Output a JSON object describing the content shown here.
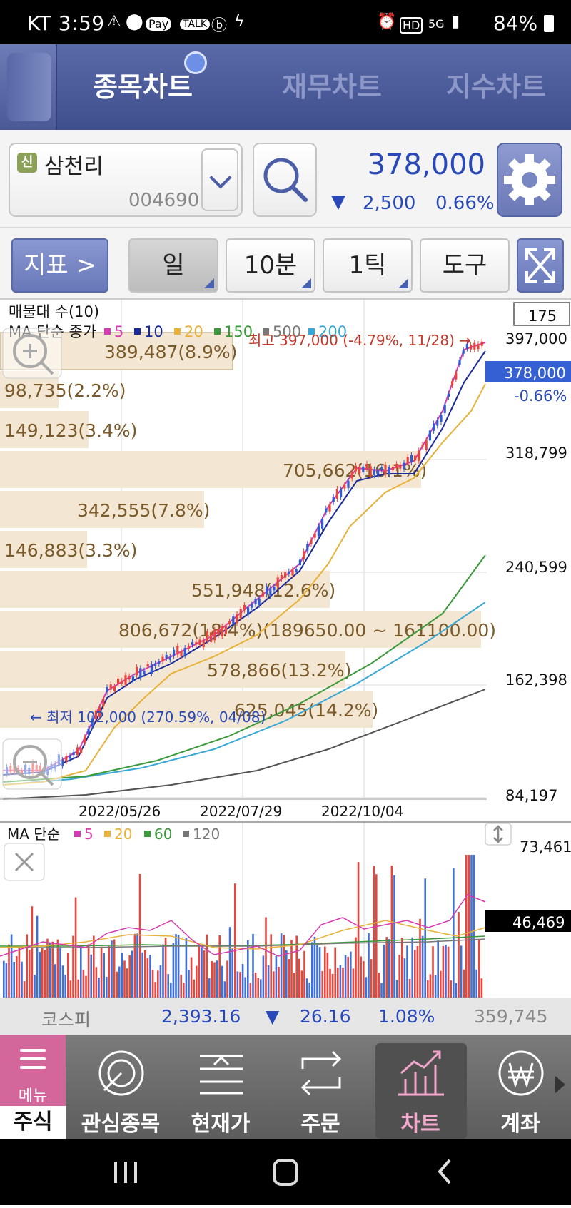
{
  "status_bar": {
    "carrier_time": "KT 3:59",
    "battery": "84%",
    "icons": [
      "warning-icon",
      "location-icon",
      "pay-icon",
      "talk-icon",
      "b-icon",
      "v-icon",
      "alarm-icon",
      "hd-icon",
      "5g-icon",
      "signal-icon",
      "battery-icon"
    ]
  },
  "top_tabs": [
    "종목차트",
    "재무차트",
    "지수차트"
  ],
  "stock": {
    "badge": "신",
    "name": "삼천리",
    "code": "004690",
    "price": "378,000",
    "change_arrow": "▼",
    "change": "2,500",
    "change_pct": "0.66%"
  },
  "toolbar": {
    "indicator": "지표 >",
    "period": "일",
    "minute": "10분",
    "tick": "1틱",
    "tools": "도구"
  },
  "chart": {
    "vol_profile_title": "매물대 수(10)",
    "ma_label": "MA 단순 종가",
    "ma_series": [
      {
        "name": "5",
        "color": "#d63cb0"
      },
      {
        "name": "10",
        "color": "#1a2a9a"
      },
      {
        "name": "20",
        "color": "#e8b23a"
      },
      {
        "name": "150",
        "color": "#3c9a3c"
      },
      {
        "name": "500",
        "color": "#777777"
      },
      {
        "name": "200",
        "color": "#3aa8d6"
      }
    ],
    "count_box": "175",
    "high_label": "최고 397,000 (-4.79%, 11/28) →",
    "low_label": "← 최저 102,000 (270.59%, 04/08)",
    "current_price_tag": "378,000",
    "current_change_tag": "-0.66%",
    "y_ticks": [
      "397,000",
      "318,799",
      "240,599",
      "162,398",
      "84,197"
    ],
    "x_ticks": [
      "2022/05/26",
      "2022/07/29",
      "2022/10/04"
    ],
    "volume_profile": [
      "389,487(8.9%)",
      "98,735(2.2%)",
      "149,123(3.4%)",
      "705,662(16.1%)",
      "342,555(7.8%)",
      "146,883(3.3%)",
      "551,948(12.6%)",
      "806,672(18.4%)(189650.00 ~ 161100.00)",
      "578,866(13.2%)",
      "625,045(14.2%)"
    ]
  },
  "volume_chart": {
    "ma_label": "MA 단순",
    "ma_series": [
      {
        "name": "5",
        "color": "#d63cb0"
      },
      {
        "name": "20",
        "color": "#e8b23a"
      },
      {
        "name": "60",
        "color": "#3c9a3c"
      },
      {
        "name": "120",
        "color": "#777777"
      }
    ],
    "y_top": "73,461",
    "y_current": "46,469"
  },
  "kospi": {
    "name": "코스피",
    "value": "2,393.16",
    "arrow": "▼",
    "change": "26.16",
    "pct": "1.08%",
    "volume": "359,745"
  },
  "bottom_nav": {
    "menu": "메뉴",
    "stock": "주식",
    "items": [
      "관심종목",
      "현재가",
      "주문",
      "차트",
      "계좌"
    ],
    "active": "차트"
  }
}
